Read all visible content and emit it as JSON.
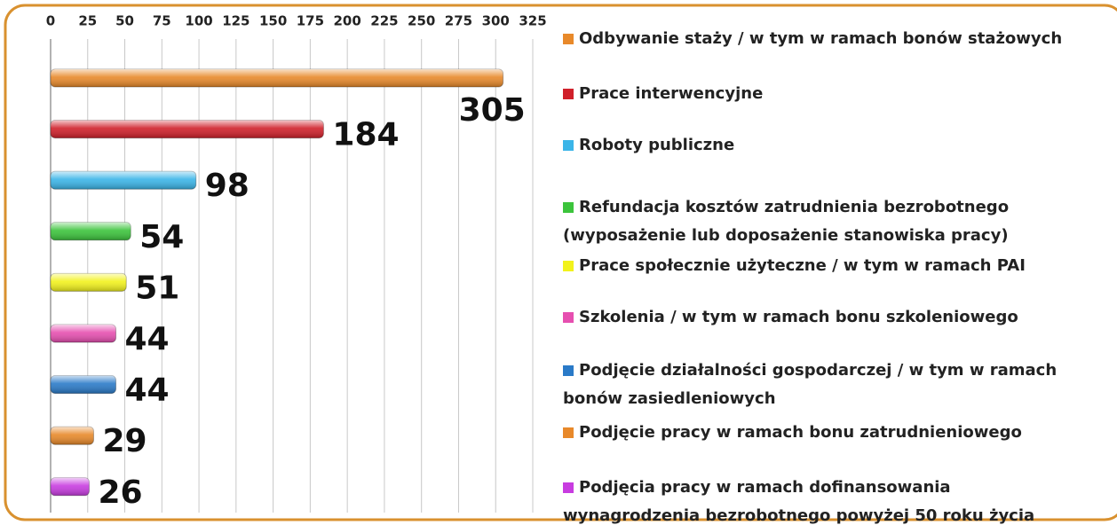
{
  "chart_data": {
    "type": "bar",
    "orientation": "horizontal",
    "categories": [
      "Odbywanie staży / w tym w ramach bonów stażowych",
      "Prace interwencyjne",
      "Roboty publiczne",
      "Refundacja kosztów zatrudnienia bezrobotnego\n(wyposażenie lub doposażenie stanowiska pracy)",
      "Prace społecznie użyteczne / w tym w ramach PAI",
      "Szkolenia / w tym w ramach bonu szkoleniowego",
      "Podjęcie działalności  gospodarczej / w tym w ramach\nbonów zasiedleniowych",
      "Podjęcie pracy w ramach bonu zatrudnieniowego",
      "Podjęcia pracy w ramach dofinansowania\nwynagrodzenia bezrobotnego powyżej 50 roku życia"
    ],
    "values": [
      305,
      184,
      98,
      54,
      51,
      44,
      44,
      29,
      26
    ],
    "colors": [
      "#e8892a",
      "#d0202a",
      "#3bb5e8",
      "#3cc43c",
      "#f2f21c",
      "#e64fb0",
      "#2a7ac8",
      "#e8892a",
      "#c83ce0"
    ],
    "xlim": [
      0,
      325
    ],
    "xticks": [
      0,
      25,
      50,
      75,
      100,
      125,
      150,
      175,
      200,
      225,
      250,
      275,
      300,
      325
    ],
    "grid": true
  }
}
